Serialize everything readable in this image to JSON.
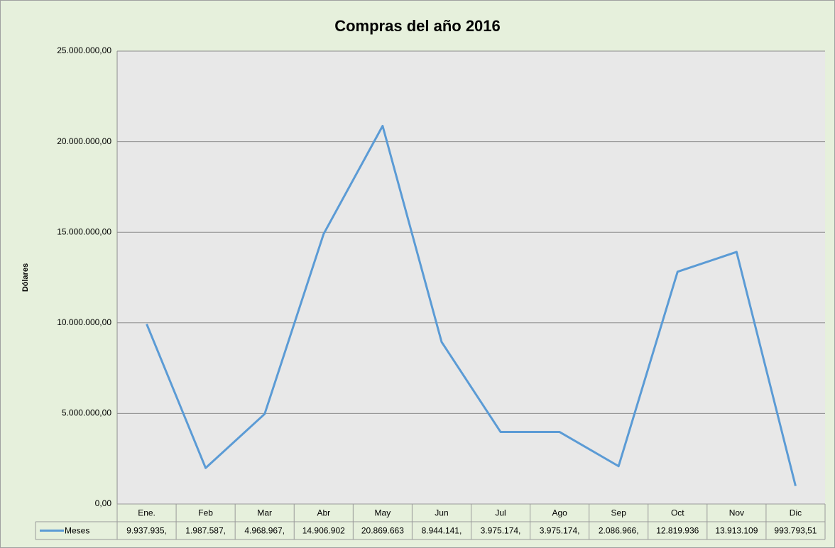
{
  "chart_data": {
    "type": "line",
    "title": "Compras del año 2016",
    "y_label": "Dólares",
    "categories": [
      "Ene.",
      "Feb",
      "Mar",
      "Abr",
      "May",
      "Jun",
      "Jul",
      "Ago",
      "Sep",
      "Oct",
      "Nov",
      "Dic"
    ],
    "series": [
      {
        "name": "Meses",
        "color": "#5b9bd5",
        "values": [
          9937935,
          1987587,
          4968967,
          14906902,
          20869663,
          8944141,
          3975174,
          3975174,
          2086966,
          12819936,
          13913109,
          993793.51
        ],
        "value_labels": [
          "9.937.935,",
          "1.987.587,",
          "4.968.967,",
          "14.906.902",
          "20.869.663",
          "8.944.141,",
          "3.975.174,",
          "3.975.174,",
          "2.086.966,",
          "12.819.936",
          "13.913.109",
          "993.793,51"
        ]
      }
    ],
    "ylim": [
      0,
      25000000
    ],
    "yticks": [
      {
        "value": 0,
        "label": "0,00"
      },
      {
        "value": 5000000,
        "label": "5.000.000,00"
      },
      {
        "value": 10000000,
        "label": "10.000.000,00"
      },
      {
        "value": 15000000,
        "label": "15.000.000,00"
      },
      {
        "value": 20000000,
        "label": "20.000.000,00"
      },
      {
        "value": 25000000,
        "label": "25.000.000,00"
      }
    ],
    "grid": true,
    "data_table": true
  }
}
